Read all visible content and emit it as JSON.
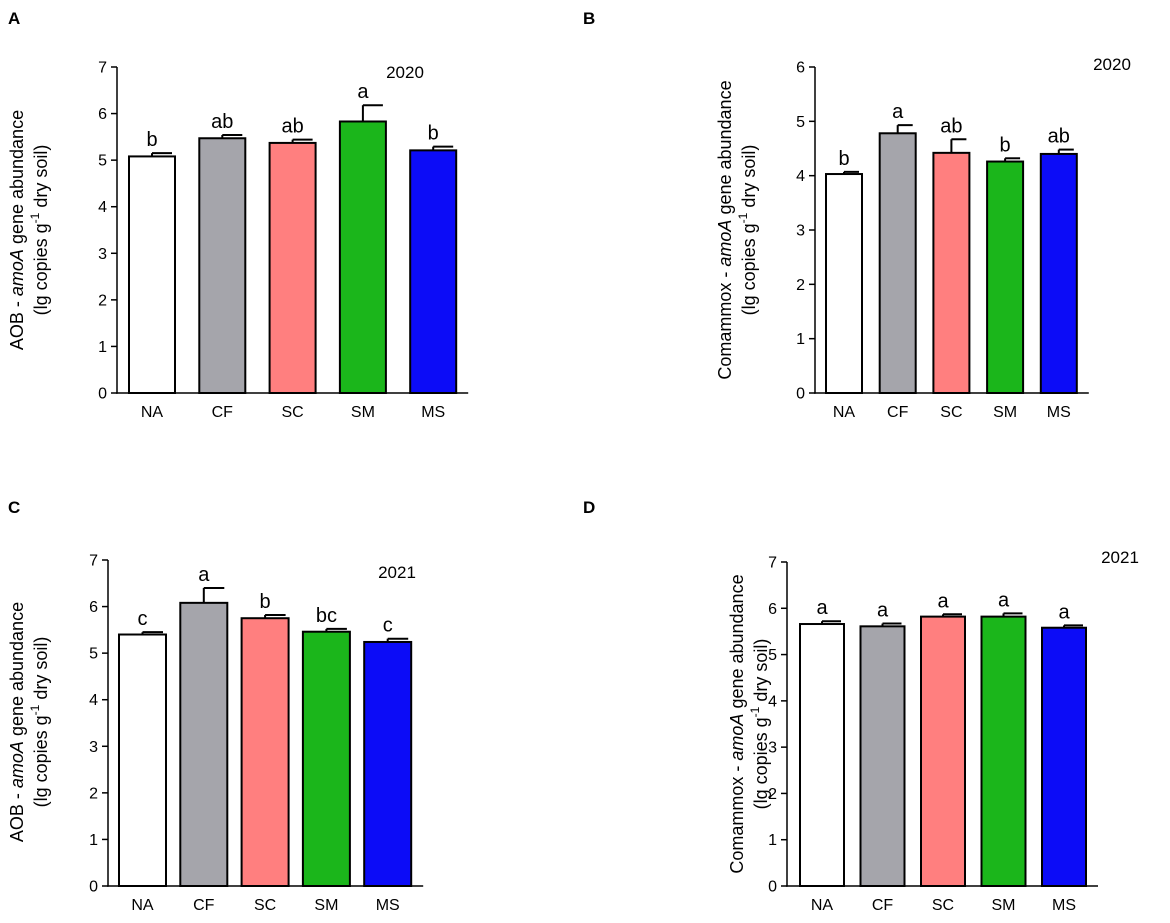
{
  "chart_data": [
    {
      "panel": "A",
      "type": "bar",
      "year": "2020",
      "ylabel_main": "AOB - amoA gene abundance",
      "ylabel_prefix": "AOB - ",
      "ylabel_gene": "amoA",
      "ylabel_suffix": " gene abundance",
      "ylabel_unit": "(lg copies g-1 dry soil)",
      "ylabel_unit_pre": "(lg copies g",
      "ylabel_unit_sup": "-1",
      "ylabel_unit_post": " dry soil)",
      "categories": [
        "NA",
        "CF",
        "SC",
        "SM",
        "MS"
      ],
      "values": [
        5.08,
        5.47,
        5.37,
        5.83,
        5.21
      ],
      "errors": [
        0.07,
        0.07,
        0.07,
        0.35,
        0.08
      ],
      "significance": [
        "b",
        "ab",
        "ab",
        "a",
        "b"
      ],
      "ylim": [
        0,
        7
      ],
      "yticks": [
        "0",
        "1",
        "2",
        "3",
        "4",
        "5",
        "6",
        "7"
      ],
      "colors": [
        "#ffffff",
        "#a5a5ab",
        "#ff7f7f",
        "#1bb61b",
        "#0c0cf7"
      ]
    },
    {
      "panel": "B",
      "type": "bar",
      "year": "2020",
      "ylabel_main": "Comammox - amoA gene abundance",
      "ylabel_prefix": "Comammox - ",
      "ylabel_gene": "amoA",
      "ylabel_suffix": " gene abundance",
      "ylabel_unit": "(lg copies g-1 dry soil)",
      "ylabel_unit_pre": "(lg copies g",
      "ylabel_unit_sup": "-1",
      "ylabel_unit_post": " dry soil)",
      "categories": [
        "NA",
        "CF",
        "SC",
        "SM",
        "MS"
      ],
      "values": [
        4.03,
        4.78,
        4.42,
        4.26,
        4.4
      ],
      "errors": [
        0.04,
        0.15,
        0.25,
        0.06,
        0.08
      ],
      "significance": [
        "b",
        "a",
        "ab",
        "b",
        "ab"
      ],
      "ylim": [
        0,
        6
      ],
      "yticks": [
        "0",
        "1",
        "2",
        "3",
        "4",
        "5",
        "6"
      ],
      "colors": [
        "#ffffff",
        "#a5a5ab",
        "#ff7f7f",
        "#1bb61b",
        "#0c0cf7"
      ]
    },
    {
      "panel": "C",
      "type": "bar",
      "year": "2021",
      "ylabel_main": "AOB - amoA gene abundance",
      "ylabel_prefix": "AOB - ",
      "ylabel_gene": "amoA",
      "ylabel_suffix": " gene abundance",
      "ylabel_unit": "(lg copies g-1 dry soil)",
      "ylabel_unit_pre": "(lg copies g",
      "ylabel_unit_sup": "-1",
      "ylabel_unit_post": " dry soil)",
      "categories": [
        "NA",
        "CF",
        "SC",
        "SM",
        "MS"
      ],
      "values": [
        5.4,
        6.08,
        5.75,
        5.46,
        5.24
      ],
      "errors": [
        0.05,
        0.32,
        0.07,
        0.06,
        0.07
      ],
      "significance": [
        "c",
        "a",
        "b",
        "bc",
        "c"
      ],
      "ylim": [
        0,
        7
      ],
      "yticks": [
        "0",
        "1",
        "2",
        "3",
        "4",
        "5",
        "6",
        "7"
      ],
      "colors": [
        "#ffffff",
        "#a5a5ab",
        "#ff7f7f",
        "#1bb61b",
        "#0c0cf7"
      ]
    },
    {
      "panel": "D",
      "type": "bar",
      "year": "2021",
      "ylabel_main": "Comammox - amoA gene abundance",
      "ylabel_prefix": "Comammox - ",
      "ylabel_gene": "amoA",
      "ylabel_suffix": " gene abundance",
      "ylabel_unit": "(lg copies g-1 dry soil)",
      "ylabel_unit_pre": "(lg copies g",
      "ylabel_unit_sup": "-1",
      "ylabel_unit_post": " dry soil)",
      "categories": [
        "NA",
        "CF",
        "SC",
        "SM",
        "MS"
      ],
      "values": [
        5.66,
        5.61,
        5.82,
        5.82,
        5.58
      ],
      "errors": [
        0.06,
        0.06,
        0.05,
        0.07,
        0.05
      ],
      "significance": [
        "a",
        "a",
        "a",
        "a",
        "a"
      ],
      "ylim": [
        0,
        7
      ],
      "yticks": [
        "0",
        "1",
        "2",
        "3",
        "4",
        "5",
        "6",
        "7"
      ],
      "colors": [
        "#ffffff",
        "#a5a5ab",
        "#ff7f7f",
        "#1bb61b",
        "#0c0cf7"
      ]
    }
  ]
}
